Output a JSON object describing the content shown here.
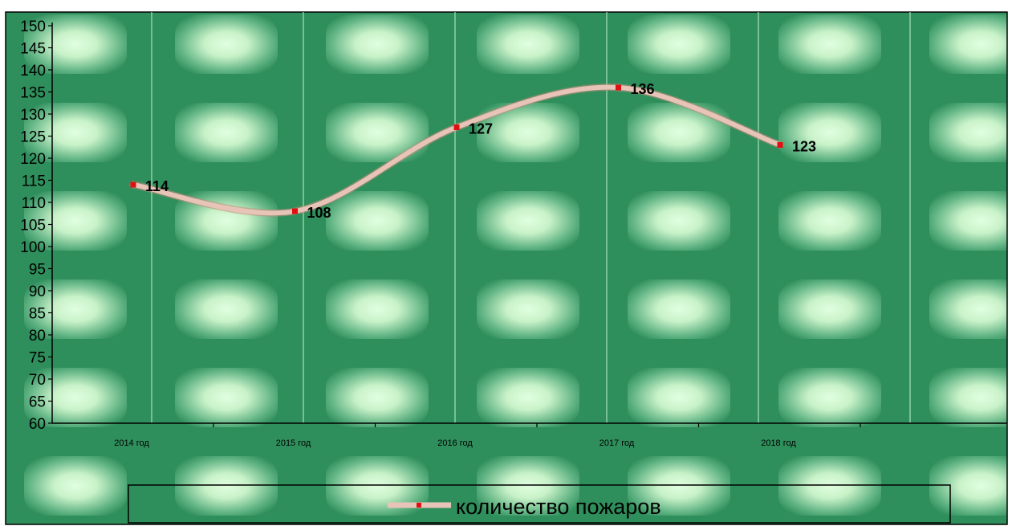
{
  "chart_data": {
    "type": "line",
    "categories": [
      "2014 год",
      "2015 год",
      "2016 год",
      "2017 год",
      "2018 год"
    ],
    "series": [
      {
        "name": "количество пожаров",
        "values": [
          114,
          108,
          127,
          136,
          123
        ]
      }
    ],
    "data_labels": [
      "114",
      "108",
      "127",
      "136",
      "123"
    ],
    "ylim": [
      60,
      150
    ],
    "ytick_step": 5,
    "grid": true,
    "smooth": true,
    "legend_position": "bottom",
    "colors": {
      "line": "#e8c4b8",
      "marker": "#e01010",
      "background_dark": "#2f8f5c",
      "background_light": "#d4f7d4"
    }
  },
  "legend": {
    "label": "количество пожаров"
  }
}
